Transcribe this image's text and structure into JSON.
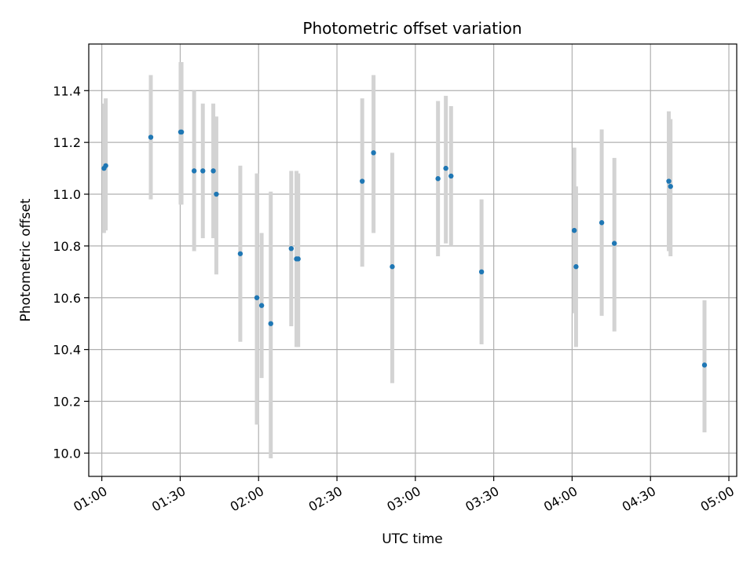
{
  "chart_data": {
    "type": "scatter",
    "title": "Photometric offset variation",
    "xlabel": "UTC time",
    "ylabel": "Photometric offset",
    "grid": true,
    "x_unit": "UTC time (HH:MM)",
    "xlim": [
      "00:55",
      "05:03"
    ],
    "ylim": [
      9.91,
      11.58
    ],
    "x_ticks": [
      "01:00",
      "01:30",
      "02:00",
      "02:30",
      "03:00",
      "03:30",
      "04:00",
      "04:30",
      "05:00"
    ],
    "y_ticks": [
      10.0,
      10.2,
      10.4,
      10.6,
      10.8,
      11.0,
      11.2,
      11.4
    ],
    "y_tick_labels": [
      "10.0",
      "10.2",
      "10.4",
      "10.6",
      "10.8",
      "11.0",
      "11.2",
      "11.4"
    ],
    "point_color": "#1f77b4",
    "errorbar_color": "#d3d3d3",
    "points": [
      {
        "t": "01:00:50",
        "y": 11.1,
        "lo": 10.85,
        "hi": 11.35
      },
      {
        "t": "01:01:30",
        "y": 11.11,
        "lo": 10.86,
        "hi": 11.37
      },
      {
        "t": "01:18:45",
        "y": 11.22,
        "lo": 10.98,
        "hi": 11.46
      },
      {
        "t": "01:30:10",
        "y": 11.24,
        "lo": 10.96,
        "hi": 11.51
      },
      {
        "t": "01:30:30",
        "y": 11.24,
        "lo": 10.96,
        "hi": 11.51
      },
      {
        "t": "01:35:20",
        "y": 11.09,
        "lo": 10.78,
        "hi": 11.4
      },
      {
        "t": "01:38:40",
        "y": 11.09,
        "lo": 10.83,
        "hi": 11.35
      },
      {
        "t": "01:42:40",
        "y": 11.09,
        "lo": 10.83,
        "hi": 11.35
      },
      {
        "t": "01:43:50",
        "y": 11.0,
        "lo": 10.69,
        "hi": 11.3
      },
      {
        "t": "01:53:00",
        "y": 10.77,
        "lo": 10.43,
        "hi": 11.11
      },
      {
        "t": "01:59:20",
        "y": 10.6,
        "lo": 10.11,
        "hi": 11.08
      },
      {
        "t": "02:01:10",
        "y": 10.57,
        "lo": 10.29,
        "hi": 10.85
      },
      {
        "t": "02:04:40",
        "y": 10.5,
        "lo": 9.98,
        "hi": 11.01
      },
      {
        "t": "02:12:30",
        "y": 10.79,
        "lo": 10.49,
        "hi": 11.09
      },
      {
        "t": "02:14:30",
        "y": 10.75,
        "lo": 10.41,
        "hi": 11.09
      },
      {
        "t": "02:15:10",
        "y": 10.75,
        "lo": 10.41,
        "hi": 11.08
      },
      {
        "t": "02:39:40",
        "y": 11.05,
        "lo": 10.72,
        "hi": 11.37
      },
      {
        "t": "02:44:00",
        "y": 11.16,
        "lo": 10.85,
        "hi": 11.46
      },
      {
        "t": "02:51:10",
        "y": 10.72,
        "lo": 10.27,
        "hi": 11.16
      },
      {
        "t": "03:08:40",
        "y": 11.06,
        "lo": 10.76,
        "hi": 11.36
      },
      {
        "t": "03:11:40",
        "y": 11.1,
        "lo": 10.81,
        "hi": 11.38
      },
      {
        "t": "03:13:40",
        "y": 11.07,
        "lo": 10.8,
        "hi": 11.34
      },
      {
        "t": "03:25:20",
        "y": 10.7,
        "lo": 10.42,
        "hi": 10.98
      },
      {
        "t": "04:00:50",
        "y": 10.86,
        "lo": 10.54,
        "hi": 11.18
      },
      {
        "t": "04:01:30",
        "y": 10.72,
        "lo": 10.41,
        "hi": 11.03
      },
      {
        "t": "04:11:20",
        "y": 10.89,
        "lo": 10.53,
        "hi": 11.25
      },
      {
        "t": "04:16:10",
        "y": 10.81,
        "lo": 10.47,
        "hi": 11.14
      },
      {
        "t": "04:37:00",
        "y": 11.05,
        "lo": 10.78,
        "hi": 11.32
      },
      {
        "t": "04:37:40",
        "y": 11.03,
        "lo": 10.76,
        "hi": 11.29
      },
      {
        "t": "04:50:40",
        "y": 10.34,
        "lo": 10.08,
        "hi": 10.59
      }
    ]
  }
}
